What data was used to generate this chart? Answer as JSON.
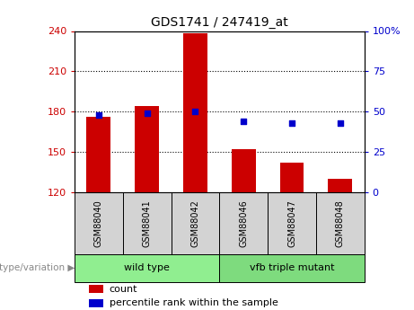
{
  "title": "GDS1741 / 247419_at",
  "samples": [
    "GSM88040",
    "GSM88041",
    "GSM88042",
    "GSM88046",
    "GSM88047",
    "GSM88048"
  ],
  "counts": [
    176,
    184,
    238,
    152,
    142,
    130
  ],
  "percentile_ranks": [
    48,
    49,
    50,
    44,
    43,
    43
  ],
  "ylim_left": [
    120,
    240
  ],
  "ylim_right": [
    0,
    100
  ],
  "yticks_left": [
    120,
    150,
    180,
    210,
    240
  ],
  "yticks_right": [
    0,
    25,
    50,
    75,
    100
  ],
  "ytick_labels_right": [
    "0",
    "25",
    "50",
    "75",
    "100%"
  ],
  "bar_color": "#cc0000",
  "dot_color": "#0000cc",
  "groups": [
    {
      "label": "wild type",
      "span": [
        0,
        2
      ],
      "color": "#90ee90"
    },
    {
      "label": "vfb triple mutant",
      "span": [
        3,
        5
      ],
      "color": "#7edb7e"
    }
  ],
  "group_label": "genotype/variation",
  "legend_count_label": "count",
  "legend_percentile_label": "percentile rank within the sample",
  "bar_color_legend": "#cc0000",
  "dot_color_legend": "#0000cc",
  "tick_color_left": "#cc0000",
  "tick_color_right": "#0000cc",
  "bar_width": 0.5,
  "sample_box_color": "#d3d3d3",
  "bg_color": "white"
}
